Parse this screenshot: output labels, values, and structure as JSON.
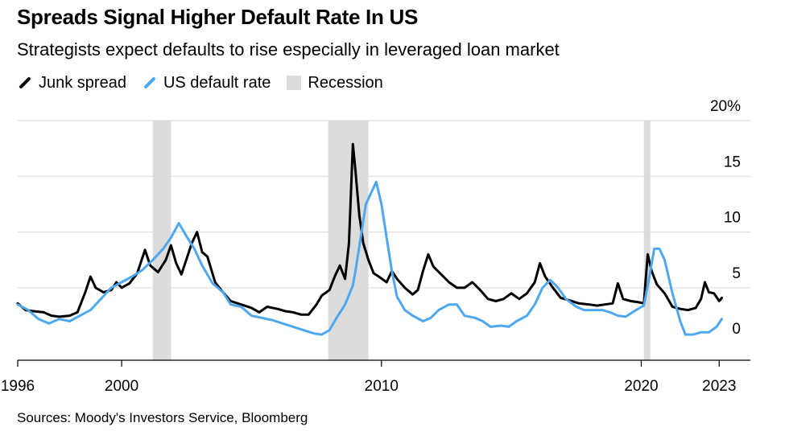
{
  "header": {
    "title": "Spreads Signal Higher Default Rate In US",
    "subtitle": "Strategists expect defaults to rise especially in leveraged loan market"
  },
  "legend": [
    {
      "label": "Junk spread",
      "color": "#000000",
      "kind": "line"
    },
    {
      "label": "US default rate",
      "color": "#4ea8f0",
      "kind": "line"
    },
    {
      "label": "Recession",
      "color": "#dcdcdc",
      "kind": "rect"
    }
  ],
  "footer": {
    "source": "Sources: Moody's Investors Service, Bloomberg"
  },
  "chart_data": {
    "type": "line",
    "title": "Spreads Signal Higher Default Rate In US",
    "subtitle": "Strategists expect defaults to rise especially in leveraged loan market",
    "xlim": [
      1996,
      2024.2
    ],
    "ylim": [
      -1.5,
      20
    ],
    "x_ticks": [
      1996,
      2000,
      2010,
      2020,
      2023
    ],
    "y_ticks": [
      0,
      5,
      10,
      15,
      20
    ],
    "y_tick_labels": [
      "0",
      "5",
      "10",
      "15",
      "20%"
    ],
    "y_axis_position": "right",
    "grid": true,
    "legend_position": "top-left",
    "recessions": [
      [
        2001.2,
        2001.9
      ],
      [
        2007.95,
        2009.5
      ],
      [
        2020.1,
        2020.35
      ]
    ],
    "series": [
      {
        "name": "Junk spread",
        "color": "#000000",
        "points": [
          [
            1996.0,
            3.6
          ],
          [
            1996.3,
            3.0
          ],
          [
            1996.6,
            2.9
          ],
          [
            1997.0,
            2.8
          ],
          [
            1997.3,
            2.5
          ],
          [
            1997.6,
            2.4
          ],
          [
            1998.0,
            2.5
          ],
          [
            1998.3,
            2.8
          ],
          [
            1998.6,
            4.6
          ],
          [
            1998.8,
            6.0
          ],
          [
            1999.0,
            5.0
          ],
          [
            1999.3,
            4.6
          ],
          [
            1999.6,
            4.8
          ],
          [
            1999.8,
            5.5
          ],
          [
            2000.0,
            5.0
          ],
          [
            2000.3,
            5.4
          ],
          [
            2000.6,
            6.3
          ],
          [
            2000.9,
            8.4
          ],
          [
            2001.1,
            7.0
          ],
          [
            2001.4,
            6.4
          ],
          [
            2001.7,
            7.5
          ],
          [
            2001.9,
            8.8
          ],
          [
            2002.1,
            7.2
          ],
          [
            2002.3,
            6.2
          ],
          [
            2002.5,
            7.6
          ],
          [
            2002.7,
            9.0
          ],
          [
            2002.9,
            10.0
          ],
          [
            2003.1,
            8.2
          ],
          [
            2003.3,
            7.8
          ],
          [
            2003.6,
            5.5
          ],
          [
            2003.9,
            4.6
          ],
          [
            2004.2,
            3.8
          ],
          [
            2004.6,
            3.5
          ],
          [
            2005.0,
            3.2
          ],
          [
            2005.3,
            2.8
          ],
          [
            2005.6,
            3.3
          ],
          [
            2006.0,
            3.1
          ],
          [
            2006.3,
            2.9
          ],
          [
            2006.6,
            2.8
          ],
          [
            2006.9,
            2.6
          ],
          [
            2007.2,
            2.6
          ],
          [
            2007.5,
            3.5
          ],
          [
            2007.7,
            4.3
          ],
          [
            2008.0,
            4.8
          ],
          [
            2008.2,
            6.0
          ],
          [
            2008.4,
            7.0
          ],
          [
            2008.6,
            5.8
          ],
          [
            2008.75,
            9.0
          ],
          [
            2008.9,
            17.9
          ],
          [
            2009.0,
            15.5
          ],
          [
            2009.15,
            11.5
          ],
          [
            2009.3,
            9.0
          ],
          [
            2009.5,
            7.5
          ],
          [
            2009.7,
            6.3
          ],
          [
            2009.9,
            6.0
          ],
          [
            2010.2,
            5.5
          ],
          [
            2010.4,
            6.5
          ],
          [
            2010.6,
            5.8
          ],
          [
            2010.9,
            5.0
          ],
          [
            2011.2,
            4.4
          ],
          [
            2011.4,
            4.8
          ],
          [
            2011.6,
            6.5
          ],
          [
            2011.8,
            8.0
          ],
          [
            2012.0,
            6.9
          ],
          [
            2012.3,
            6.2
          ],
          [
            2012.6,
            5.5
          ],
          [
            2012.9,
            5.0
          ],
          [
            2013.2,
            5.0
          ],
          [
            2013.5,
            5.5
          ],
          [
            2013.8,
            4.8
          ],
          [
            2014.1,
            4.0
          ],
          [
            2014.4,
            3.8
          ],
          [
            2014.7,
            4.0
          ],
          [
            2015.0,
            4.5
          ],
          [
            2015.3,
            4.0
          ],
          [
            2015.6,
            4.5
          ],
          [
            2015.9,
            5.5
          ],
          [
            2016.1,
            7.2
          ],
          [
            2016.3,
            6.0
          ],
          [
            2016.6,
            5.0
          ],
          [
            2016.9,
            4.1
          ],
          [
            2017.2,
            3.9
          ],
          [
            2017.6,
            3.6
          ],
          [
            2018.0,
            3.5
          ],
          [
            2018.3,
            3.4
          ],
          [
            2018.6,
            3.5
          ],
          [
            2018.9,
            3.6
          ],
          [
            2019.1,
            5.4
          ],
          [
            2019.3,
            4.0
          ],
          [
            2019.6,
            3.8
          ],
          [
            2019.9,
            3.7
          ],
          [
            2020.1,
            3.6
          ],
          [
            2020.25,
            8.0
          ],
          [
            2020.4,
            6.5
          ],
          [
            2020.6,
            5.3
          ],
          [
            2020.9,
            4.5
          ],
          [
            2021.2,
            3.3
          ],
          [
            2021.5,
            3.1
          ],
          [
            2021.8,
            3.0
          ],
          [
            2022.1,
            3.2
          ],
          [
            2022.3,
            4.0
          ],
          [
            2022.45,
            5.5
          ],
          [
            2022.6,
            4.6
          ],
          [
            2022.8,
            4.5
          ],
          [
            2023.0,
            3.8
          ],
          [
            2023.1,
            4.1
          ]
        ]
      },
      {
        "name": "US default rate",
        "color": "#4ea8f0",
        "points": [
          [
            1996.0,
            3.5
          ],
          [
            1996.4,
            3.0
          ],
          [
            1996.8,
            2.2
          ],
          [
            1997.2,
            1.8
          ],
          [
            1997.6,
            2.2
          ],
          [
            1998.0,
            2.0
          ],
          [
            1998.4,
            2.5
          ],
          [
            1998.8,
            3.0
          ],
          [
            1999.2,
            4.0
          ],
          [
            1999.6,
            5.0
          ],
          [
            2000.0,
            5.5
          ],
          [
            2000.4,
            6.0
          ],
          [
            2000.8,
            6.6
          ],
          [
            2001.2,
            7.5
          ],
          [
            2001.6,
            8.5
          ],
          [
            2001.9,
            9.5
          ],
          [
            2002.2,
            10.8
          ],
          [
            2002.5,
            9.6
          ],
          [
            2002.8,
            8.5
          ],
          [
            2003.1,
            7.0
          ],
          [
            2003.5,
            5.4
          ],
          [
            2003.9,
            4.6
          ],
          [
            2004.2,
            3.5
          ],
          [
            2004.6,
            3.3
          ],
          [
            2005.0,
            2.5
          ],
          [
            2005.4,
            2.3
          ],
          [
            2005.8,
            2.1
          ],
          [
            2006.2,
            1.8
          ],
          [
            2006.6,
            1.5
          ],
          [
            2007.0,
            1.2
          ],
          [
            2007.4,
            0.9
          ],
          [
            2007.7,
            0.8
          ],
          [
            2008.0,
            1.2
          ],
          [
            2008.3,
            2.4
          ],
          [
            2008.6,
            3.5
          ],
          [
            2008.9,
            5.2
          ],
          [
            2009.0,
            6.5
          ],
          [
            2009.2,
            9.5
          ],
          [
            2009.4,
            12.5
          ],
          [
            2009.6,
            13.5
          ],
          [
            2009.8,
            14.5
          ],
          [
            2010.0,
            12.5
          ],
          [
            2010.2,
            9.5
          ],
          [
            2010.4,
            6.5
          ],
          [
            2010.6,
            4.2
          ],
          [
            2010.9,
            3.0
          ],
          [
            2011.2,
            2.5
          ],
          [
            2011.6,
            2.0
          ],
          [
            2011.9,
            2.3
          ],
          [
            2012.2,
            3.0
          ],
          [
            2012.6,
            3.5
          ],
          [
            2012.9,
            3.5
          ],
          [
            2013.2,
            2.5
          ],
          [
            2013.6,
            2.3
          ],
          [
            2013.9,
            2.0
          ],
          [
            2014.2,
            1.5
          ],
          [
            2014.6,
            1.6
          ],
          [
            2014.9,
            1.5
          ],
          [
            2015.2,
            2.0
          ],
          [
            2015.6,
            2.5
          ],
          [
            2015.9,
            3.5
          ],
          [
            2016.2,
            5.0
          ],
          [
            2016.5,
            5.7
          ],
          [
            2016.8,
            5.0
          ],
          [
            2017.1,
            4.0
          ],
          [
            2017.5,
            3.3
          ],
          [
            2017.8,
            3.0
          ],
          [
            2018.1,
            3.0
          ],
          [
            2018.5,
            3.0
          ],
          [
            2018.8,
            2.8
          ],
          [
            2019.1,
            2.5
          ],
          [
            2019.4,
            2.4
          ],
          [
            2019.8,
            3.0
          ],
          [
            2020.1,
            3.4
          ],
          [
            2020.3,
            5.8
          ],
          [
            2020.5,
            8.5
          ],
          [
            2020.7,
            8.5
          ],
          [
            2020.9,
            7.5
          ],
          [
            2021.2,
            4.5
          ],
          [
            2021.5,
            2.0
          ],
          [
            2021.7,
            0.8
          ],
          [
            2022.0,
            0.8
          ],
          [
            2022.3,
            1.0
          ],
          [
            2022.6,
            1.0
          ],
          [
            2022.9,
            1.5
          ],
          [
            2023.1,
            2.2
          ]
        ]
      }
    ]
  }
}
